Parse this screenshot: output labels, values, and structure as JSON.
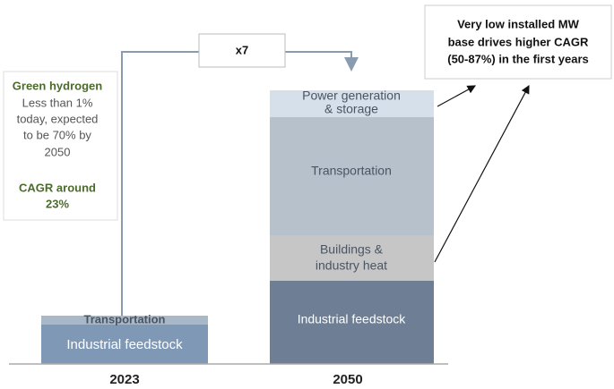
{
  "connector_label": "x7",
  "left_note": {
    "title": "Green hydrogen",
    "body": [
      "Less than 1%",
      "today, expected",
      "to be 70% by",
      "2050"
    ],
    "cagr": [
      "CAGR around",
      "23%"
    ]
  },
  "right_note": [
    "Very low installed MW",
    "base drives higher CAGR",
    "(50-87%) in the first years"
  ],
  "bars": [
    {
      "label": "2023",
      "segments": [
        {
          "name": [
            "Transportation"
          ]
        },
        {
          "name": [
            "Industrial feedstock"
          ]
        }
      ]
    },
    {
      "label": "2050",
      "segments": [
        {
          "name": [
            "Power generation",
            "& storage"
          ]
        },
        {
          "name": [
            "Transportation"
          ]
        },
        {
          "name": [
            "Buildings &",
            "industry heat"
          ]
        },
        {
          "name": [
            "Industrial feedstock"
          ]
        }
      ]
    }
  ]
}
